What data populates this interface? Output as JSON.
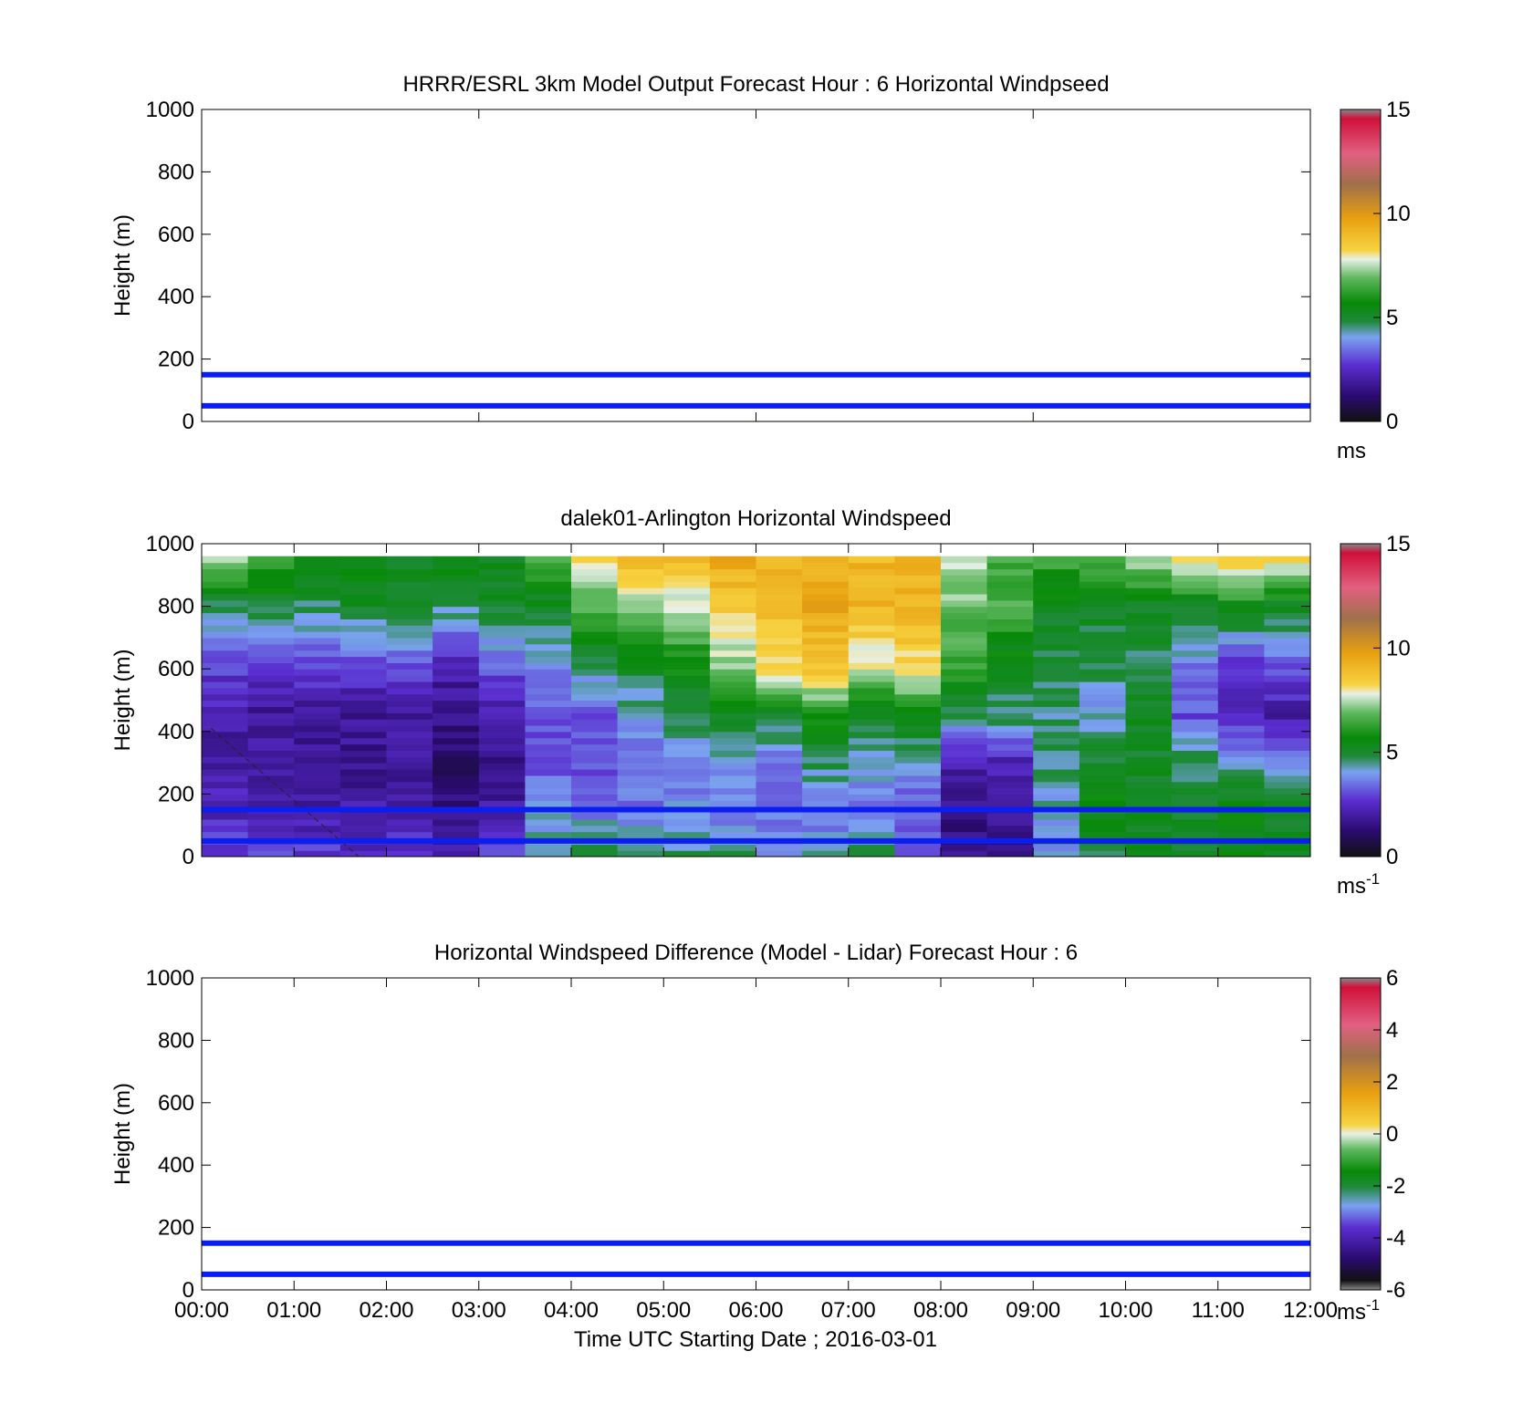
{
  "figure": {
    "xlabel": "Time UTC  Starting Date ; 2016-03-01",
    "x_ticks": [
      "00:00",
      "01:00",
      "02:00",
      "03:00",
      "04:00",
      "05:00",
      "06:00",
      "07:00",
      "08:00",
      "09:00",
      "10:00",
      "11:00",
      "12:00"
    ]
  },
  "chart_data": [
    {
      "type": "heatmap",
      "title": "HRRR/ESRL 3km Model Output   Forecast Hour : 6 Horizontal Windpseed",
      "ylabel": "Height (m)",
      "xlim_hours": [
        0,
        12
      ],
      "ylim": [
        0,
        1000
      ],
      "y_ticks": [
        "0",
        "200",
        "400",
        "600",
        "800",
        "1000"
      ],
      "colorbar": {
        "min": 0,
        "max": 15,
        "ticks": [
          "0",
          "5",
          "10",
          "15"
        ],
        "unit": "ms",
        "unit_sup": ""
      },
      "reference_lines_m": [
        50,
        150
      ],
      "line_color": "#0a1ef0",
      "cells": []
    },
    {
      "type": "heatmap",
      "title": "dalek01-Arlington  Horizontal Windspeed",
      "ylabel": "Height (m)",
      "xlim_hours": [
        0,
        12
      ],
      "ylim": [
        0,
        1000
      ],
      "y_ticks": [
        "0",
        "200",
        "400",
        "600",
        "800",
        "1000"
      ],
      "colorbar": {
        "min": 0,
        "max": 15,
        "ticks": [
          "0",
          "5",
          "10",
          "15"
        ],
        "unit": "ms",
        "unit_sup": "-1"
      },
      "reference_lines_m": [
        50,
        150
      ],
      "line_color": "#0a1ef0",
      "data_range_hours": [
        0.1,
        11.9
      ],
      "data_range_height_m": [
        0,
        960
      ],
      "speed_profiles": [
        {
          "t": 0.25,
          "c": [
            3.0,
            2.2,
            2.0,
            2.0,
            2.8,
            4.5,
            7.5
          ]
        },
        {
          "t": 0.75,
          "c": [
            2.8,
            2.0,
            1.8,
            1.8,
            2.6,
            4.8,
            6.5
          ]
        },
        {
          "t": 1.25,
          "c": [
            2.8,
            2.0,
            1.8,
            1.6,
            2.8,
            4.5,
            5.5
          ]
        },
        {
          "t": 1.75,
          "c": [
            2.5,
            2.0,
            1.7,
            1.7,
            2.6,
            5.0,
            5.5
          ]
        },
        {
          "t": 2.25,
          "c": [
            2.8,
            2.0,
            1.8,
            1.9,
            3.0,
            5.0,
            5.0
          ]
        },
        {
          "t": 2.75,
          "c": [
            2.0,
            1.5,
            1.0,
            1.5,
            2.0,
            4.5,
            5.5
          ]
        },
        {
          "t": 3.25,
          "c": [
            3.0,
            2.0,
            1.5,
            2.0,
            3.0,
            5.0,
            5.0
          ]
        },
        {
          "t": 3.75,
          "c": [
            4.5,
            4.0,
            3.0,
            3.0,
            3.5,
            5.0,
            6.5
          ]
        },
        {
          "t": 4.25,
          "c": [
            5.0,
            3.5,
            3.0,
            3.0,
            4.5,
            6.5,
            8.5
          ]
        },
        {
          "t": 4.75,
          "c": [
            4.5,
            3.5,
            3.5,
            3.8,
            5.0,
            7.0,
            9.0
          ]
        },
        {
          "t": 5.25,
          "c": [
            4.5,
            3.8,
            3.5,
            4.5,
            5.5,
            7.5,
            9.0
          ]
        },
        {
          "t": 5.75,
          "c": [
            4.5,
            3.5,
            4.0,
            5.0,
            7.0,
            8.5,
            9.5
          ]
        },
        {
          "t": 6.25,
          "c": [
            4.0,
            3.5,
            3.5,
            5.0,
            8.0,
            9.0,
            9.0
          ]
        },
        {
          "t": 6.75,
          "c": [
            4.0,
            3.5,
            4.5,
            6.0,
            8.5,
            9.5,
            9.0
          ]
        },
        {
          "t": 7.25,
          "c": [
            4.5,
            3.5,
            4.0,
            5.0,
            7.5,
            9.0,
            9.0
          ]
        },
        {
          "t": 7.75,
          "c": [
            3.0,
            3.0,
            4.0,
            5.5,
            8.0,
            9.0,
            9.0
          ]
        },
        {
          "t": 8.25,
          "c": [
            1.5,
            1.5,
            2.0,
            4.5,
            6.0,
            7.0,
            7.5
          ]
        },
        {
          "t": 8.75,
          "c": [
            1.5,
            2.0,
            2.0,
            4.5,
            5.0,
            6.5,
            6.5
          ]
        },
        {
          "t": 9.25,
          "c": [
            4.0,
            4.0,
            4.5,
            4.5,
            4.5,
            5.0,
            6.5
          ]
        },
        {
          "t": 9.75,
          "c": [
            4.5,
            5.5,
            5.0,
            4.0,
            4.5,
            5.0,
            6.5
          ]
        },
        {
          "t": 10.25,
          "c": [
            5.0,
            5.0,
            5.0,
            5.0,
            4.5,
            5.0,
            7.5
          ]
        },
        {
          "t": 10.75,
          "c": [
            5.0,
            5.0,
            4.5,
            3.0,
            3.5,
            5.0,
            8.5
          ]
        },
        {
          "t": 11.25,
          "c": [
            5.5,
            5.5,
            4.0,
            2.5,
            2.5,
            5.5,
            8.5
          ]
        },
        {
          "t": 11.75,
          "c": [
            5.0,
            5.0,
            3.5,
            2.0,
            3.0,
            5.0,
            8.5
          ]
        }
      ]
    },
    {
      "type": "heatmap",
      "title": "Horizontal Windspeed Difference (Model - Lidar) Forecast Hour : 6",
      "ylabel": "Height (m)",
      "xlim_hours": [
        0,
        12
      ],
      "ylim": [
        0,
        1000
      ],
      "y_ticks": [
        "0",
        "200",
        "400",
        "600",
        "800",
        "1000"
      ],
      "colorbar": {
        "min": -6,
        "max": 6,
        "ticks": [
          "-6",
          "-4",
          "-2",
          "0",
          "2",
          "4",
          "6"
        ],
        "unit": "ms",
        "unit_sup": "-1"
      },
      "reference_lines_m": [
        50,
        150
      ],
      "line_color": "#0a1ef0",
      "cells": []
    }
  ]
}
